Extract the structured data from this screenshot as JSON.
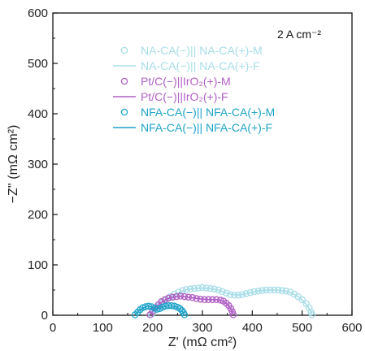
{
  "chart_data": {
    "type": "scatter",
    "xlabel": "Z' (mΩ cm²)",
    "ylabel": "−Z'' (mΩ cm²)",
    "annotation": "2 A cm⁻²",
    "xlim": [
      0,
      600
    ],
    "ylim": [
      0,
      600
    ],
    "xticks": [
      0,
      100,
      200,
      300,
      400,
      500,
      600
    ],
    "yticks": [
      0,
      100,
      200,
      300,
      400,
      500,
      600
    ],
    "legend_position": "top-right",
    "series": [
      {
        "name": "NA-CA(−)|| NA-CA(+)-M",
        "kind": "markers",
        "color": "#a8dde8",
        "points": [
          [
            198,
            2
          ],
          [
            205,
            10
          ],
          [
            212,
            18
          ],
          [
            220,
            25
          ],
          [
            228,
            31
          ],
          [
            236,
            37
          ],
          [
            244,
            42
          ],
          [
            252,
            46
          ],
          [
            260,
            49
          ],
          [
            268,
            51
          ],
          [
            276,
            52
          ],
          [
            284,
            53
          ],
          [
            292,
            54
          ],
          [
            300,
            55
          ],
          [
            308,
            54
          ],
          [
            316,
            53
          ],
          [
            324,
            52
          ],
          [
            332,
            50
          ],
          [
            340,
            47
          ],
          [
            348,
            44
          ],
          [
            356,
            41
          ],
          [
            364,
            40
          ],
          [
            372,
            40
          ],
          [
            380,
            41
          ],
          [
            388,
            43
          ],
          [
            396,
            45
          ],
          [
            404,
            47
          ],
          [
            412,
            48
          ],
          [
            420,
            49
          ],
          [
            428,
            50
          ],
          [
            436,
            50
          ],
          [
            444,
            50
          ],
          [
            452,
            50
          ],
          [
            460,
            49
          ],
          [
            468,
            48
          ],
          [
            476,
            46
          ],
          [
            484,
            42
          ],
          [
            492,
            37
          ],
          [
            500,
            31
          ],
          [
            508,
            23
          ],
          [
            514,
            15
          ],
          [
            518,
            6
          ],
          [
            520,
            1
          ]
        ]
      },
      {
        "name": "NA-CA(−)|| NA-CA(+)-F",
        "kind": "line",
        "color": "#a8dde8",
        "points": [
          [
            198,
            2
          ],
          [
            210,
            16
          ],
          [
            225,
            28
          ],
          [
            240,
            39
          ],
          [
            255,
            46
          ],
          [
            270,
            51
          ],
          [
            285,
            53
          ],
          [
            300,
            54
          ],
          [
            315,
            53
          ],
          [
            330,
            50
          ],
          [
            345,
            45
          ],
          [
            360,
            41
          ],
          [
            375,
            40
          ],
          [
            390,
            43
          ],
          [
            405,
            47
          ],
          [
            420,
            49
          ],
          [
            435,
            50
          ],
          [
            450,
            50
          ],
          [
            465,
            48
          ],
          [
            480,
            44
          ],
          [
            495,
            35
          ],
          [
            508,
            22
          ],
          [
            516,
            10
          ],
          [
            520,
            1
          ]
        ]
      },
      {
        "name": "Pt/C(−)||IrO₂(+)-M",
        "kind": "markers",
        "color": "#b05fc4",
        "points": [
          [
            195,
            1
          ],
          [
            200,
            8
          ],
          [
            206,
            15
          ],
          [
            212,
            21
          ],
          [
            218,
            27
          ],
          [
            225,
            31
          ],
          [
            232,
            34
          ],
          [
            240,
            36
          ],
          [
            248,
            37
          ],
          [
            256,
            38
          ],
          [
            264,
            37
          ],
          [
            272,
            36
          ],
          [
            280,
            35
          ],
          [
            288,
            33
          ],
          [
            296,
            32
          ],
          [
            304,
            31
          ],
          [
            312,
            31
          ],
          [
            320,
            31
          ],
          [
            328,
            31
          ],
          [
            336,
            30
          ],
          [
            342,
            28
          ],
          [
            348,
            24
          ],
          [
            353,
            19
          ],
          [
            357,
            13
          ],
          [
            360,
            7
          ],
          [
            362,
            1
          ]
        ]
      },
      {
        "name": "Pt/C(−)||IrO₂(+)-F",
        "kind": "line",
        "color": "#b05fc4",
        "points": [
          [
            195,
            1
          ],
          [
            205,
            14
          ],
          [
            215,
            24
          ],
          [
            228,
            32
          ],
          [
            242,
            36
          ],
          [
            256,
            38
          ],
          [
            270,
            36
          ],
          [
            285,
            34
          ],
          [
            300,
            32
          ],
          [
            315,
            31
          ],
          [
            330,
            31
          ],
          [
            342,
            28
          ],
          [
            352,
            20
          ],
          [
            358,
            11
          ],
          [
            362,
            1
          ]
        ]
      },
      {
        "name": "NFA-CA(−)|| NFA-CA(+)-M",
        "kind": "markers",
        "color": "#1fa3c9",
        "points": [
          [
            165,
            1
          ],
          [
            170,
            6
          ],
          [
            175,
            11
          ],
          [
            180,
            15
          ],
          [
            186,
            17
          ],
          [
            192,
            18
          ],
          [
            198,
            17
          ],
          [
            204,
            14
          ],
          [
            209,
            12
          ],
          [
            214,
            13
          ],
          [
            220,
            16
          ],
          [
            226,
            18
          ],
          [
            232,
            19
          ],
          [
            238,
            19
          ],
          [
            244,
            18
          ],
          [
            250,
            16
          ],
          [
            255,
            13
          ],
          [
            259,
            9
          ],
          [
            262,
            5
          ],
          [
            264,
            1
          ]
        ]
      },
      {
        "name": "NFA-CA(−)|| NFA-CA(+)-F",
        "kind": "line",
        "color": "#1fa3c9",
        "points": [
          [
            165,
            1
          ],
          [
            172,
            8
          ],
          [
            180,
            14
          ],
          [
            190,
            18
          ],
          [
            200,
            16
          ],
          [
            208,
            12
          ],
          [
            216,
            14
          ],
          [
            226,
            18
          ],
          [
            236,
            19
          ],
          [
            246,
            17
          ],
          [
            254,
            13
          ],
          [
            260,
            7
          ],
          [
            264,
            1
          ]
        ]
      }
    ]
  }
}
